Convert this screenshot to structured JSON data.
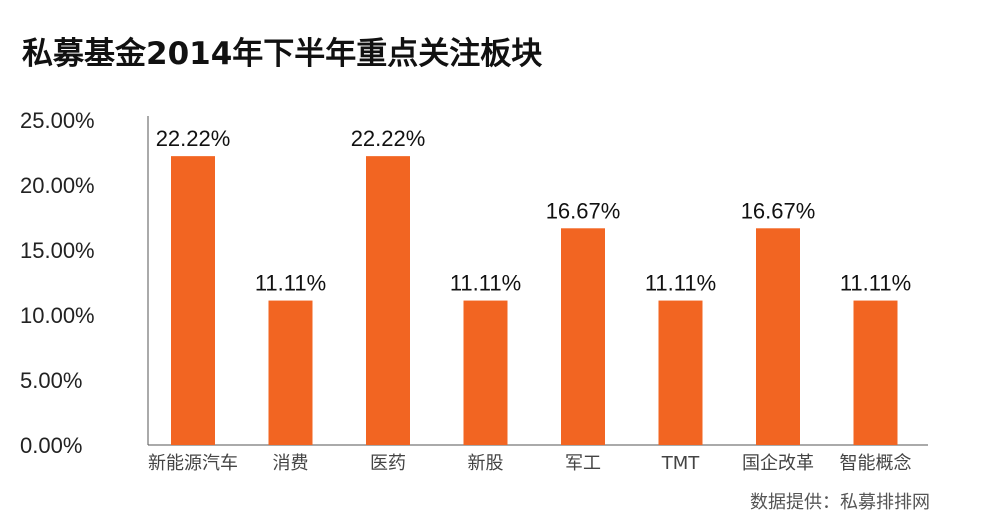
{
  "title": "私募基金2014年下半年重点关注板块",
  "source": "数据提供：私募排排网",
  "colors": {
    "bar": "#F26522",
    "axis": "#555555"
  },
  "chart_data": {
    "type": "bar",
    "title": "私募基金2014年下半年重点关注板块",
    "xlabel": "",
    "ylabel": "",
    "categories": [
      "新能源汽车",
      "消费",
      "医药",
      "新股",
      "军工",
      "TMT",
      "国企改革",
      "智能概念"
    ],
    "values": [
      22.22,
      11.11,
      22.22,
      11.11,
      16.67,
      11.11,
      16.67,
      11.11
    ],
    "value_labels": [
      "22.22%",
      "11.11%",
      "22.22%",
      "11.11%",
      "16.67%",
      "11.11%",
      "16.67%",
      "11.11%"
    ],
    "ylim": [
      0,
      25
    ],
    "yticks": [
      0,
      5,
      10,
      15,
      20,
      25
    ],
    "ytick_labels": [
      "0.00%",
      "5.00%",
      "10.00%",
      "15.00%",
      "20.00%",
      "25.00%"
    ],
    "grid": false,
    "legend": "none"
  }
}
